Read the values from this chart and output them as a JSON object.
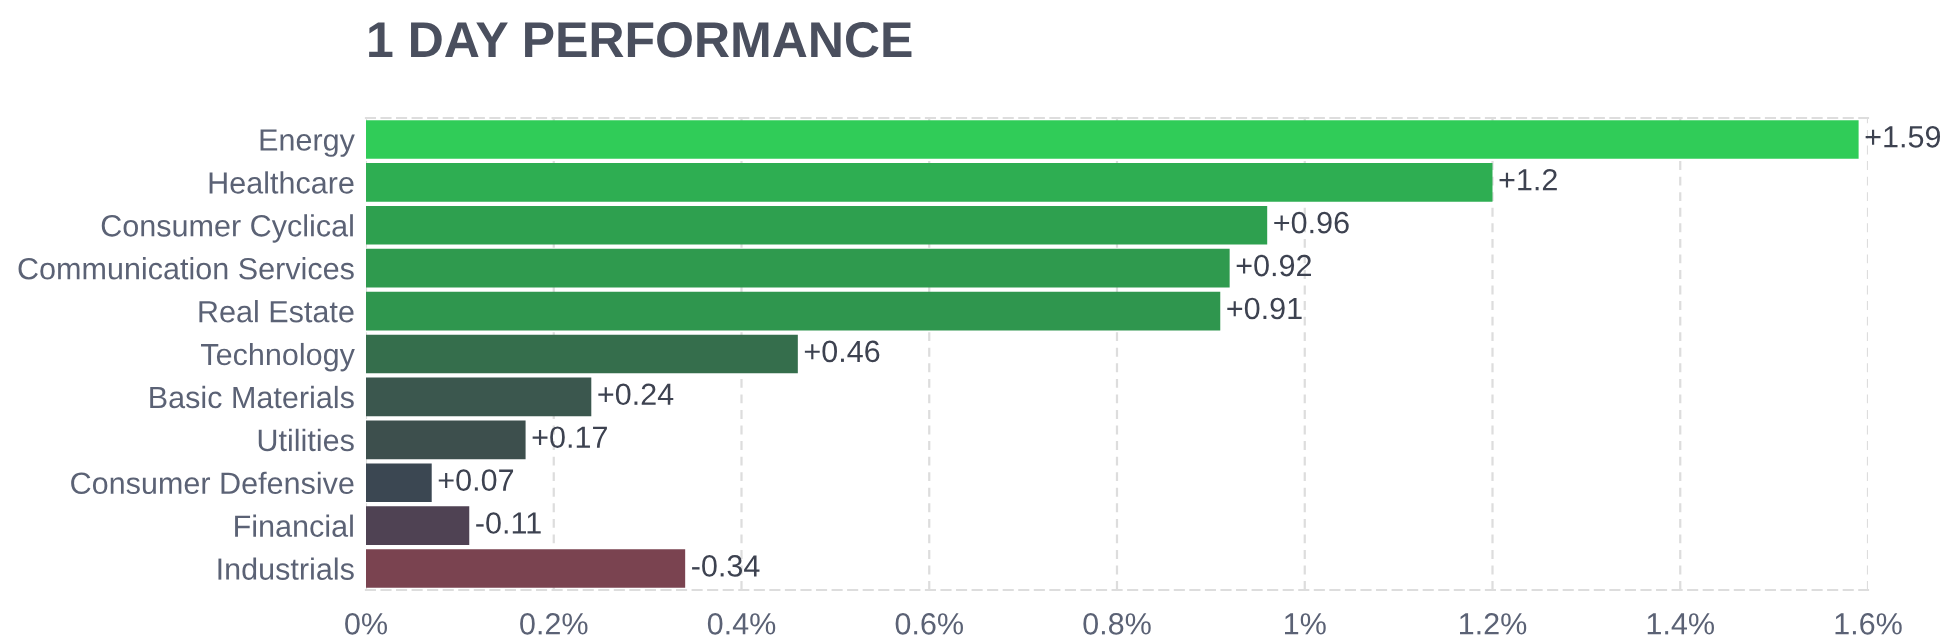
{
  "chart_data": {
    "type": "bar",
    "orientation": "horizontal",
    "title": "1 DAY PERFORMANCE",
    "categories": [
      "Energy",
      "Healthcare",
      "Consumer Cyclical",
      "Communication Services",
      "Real Estate",
      "Technology",
      "Basic Materials",
      "Utilities",
      "Consumer Defensive",
      "Financial",
      "Industrials"
    ],
    "values": [
      1.59,
      1.2,
      0.96,
      0.92,
      0.91,
      0.46,
      0.24,
      0.17,
      0.07,
      -0.11,
      -0.34
    ],
    "base": [
      0,
      0,
      0,
      0,
      0,
      0,
      0,
      0,
      0,
      0.11,
      0.34
    ],
    "value_labels": [
      "+1.59",
      "+1.2",
      "+0.96",
      "+0.92",
      "+0.91",
      "+0.46",
      "+0.24",
      "+0.17",
      "+0.07",
      "-0.11",
      "-0.34"
    ],
    "colors": [
      "#30cc58",
      "#2eae52",
      "#2ea04f",
      "#2f9a4e",
      "#2f964e",
      "#356e4c",
      "#3b574e",
      "#3d4f4d",
      "#3b4752",
      "#4f4253",
      "#7a4350"
    ],
    "xlim": [
      0,
      1.6
    ],
    "xticks": [
      {
        "value": 0,
        "label": "0%"
      },
      {
        "value": 0.2,
        "label": "0.2%"
      },
      {
        "value": 0.4,
        "label": "0.4%"
      },
      {
        "value": 0.6,
        "label": "0.6%"
      },
      {
        "value": 0.8,
        "label": "0.8%"
      },
      {
        "value": 1,
        "label": "1%"
      },
      {
        "value": 1.2,
        "label": "1.2%"
      },
      {
        "value": 1.4,
        "label": "1.4%"
      },
      {
        "value": 1.6,
        "label": "1.6%"
      }
    ],
    "grid": "x"
  }
}
